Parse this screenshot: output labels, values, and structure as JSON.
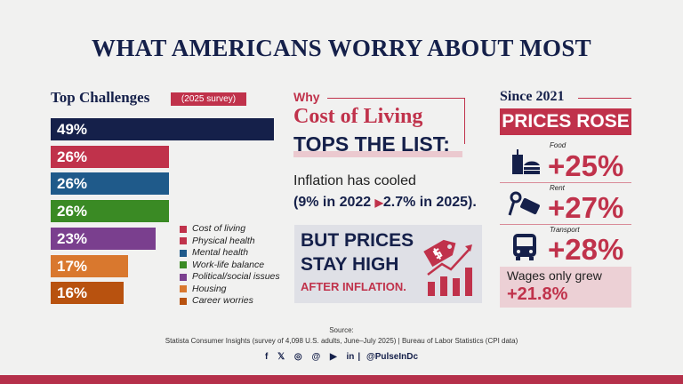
{
  "title": "WHAT AMERICANS WORRY ABOUT MOST",
  "left": {
    "heading": "Top Challenges",
    "badge": "(2025 survey)"
  },
  "chart_data": {
    "type": "bar",
    "orientation": "horizontal",
    "categories": [
      "Cost of living",
      "Physical health",
      "Mental health",
      "Work-life balance",
      "Political/social issues",
      "Housing",
      "Career worries"
    ],
    "values": [
      49,
      26,
      26,
      26,
      23,
      17,
      16
    ],
    "labels": [
      "49%",
      "26%",
      "26%",
      "26%",
      "23%",
      "17%",
      "16%"
    ],
    "colors": [
      "#15204a",
      "#c0324b",
      "#1f5a8a",
      "#3a8a24",
      "#7a3f8e",
      "#d9782e",
      "#b8520f"
    ],
    "legend_colors": [
      "#c0324b",
      "#c0324b",
      "#1f5a8a",
      "#3a8a24",
      "#7a3f8e",
      "#d9782e",
      "#b8520f"
    ],
    "legend": "bottom-right",
    "unit": "%"
  },
  "middle": {
    "why": "Why",
    "headline": "Cost of Living",
    "tops": "TOPS THE LIST:",
    "inflation_line1": "Inflation has cooled",
    "inflation_from": "(9% in 2022",
    "inflation_to": "2.7% in 2025).",
    "box_line1": "BUT PRICES",
    "box_line2": "STAY HIGH",
    "box_line3": "AFTER INFLATION."
  },
  "right": {
    "since": "Since 2021",
    "banner": "PRICES ROSE",
    "items": [
      {
        "label": "Food",
        "value": "+25%",
        "icon": "food-icon"
      },
      {
        "label": "Rent",
        "value": "+27%",
        "icon": "key-tag-icon"
      },
      {
        "label": "Transport",
        "value": "+28%",
        "icon": "bus-icon"
      }
    ],
    "wages_label": "Wages only grew",
    "wages_value": "+21.8%"
  },
  "footer": {
    "source_label": "Source:",
    "source_text": "Statista Consumer Insights (survey of 4,098 U.S. adults, June–July 2025) | Bureau of Labor Statistics (CPI data)",
    "handle": "@PulseInDc",
    "social_icons": [
      "facebook-icon",
      "x-icon",
      "instagram-icon",
      "threads-icon",
      "youtube-icon",
      "linkedin-icon"
    ],
    "social_glyphs": [
      "f",
      "𝕏",
      "◎",
      "@",
      "▶",
      "in"
    ]
  },
  "colors": {
    "navy": "#15204a",
    "red": "#c0324b",
    "pink": "#ecd0d5"
  }
}
